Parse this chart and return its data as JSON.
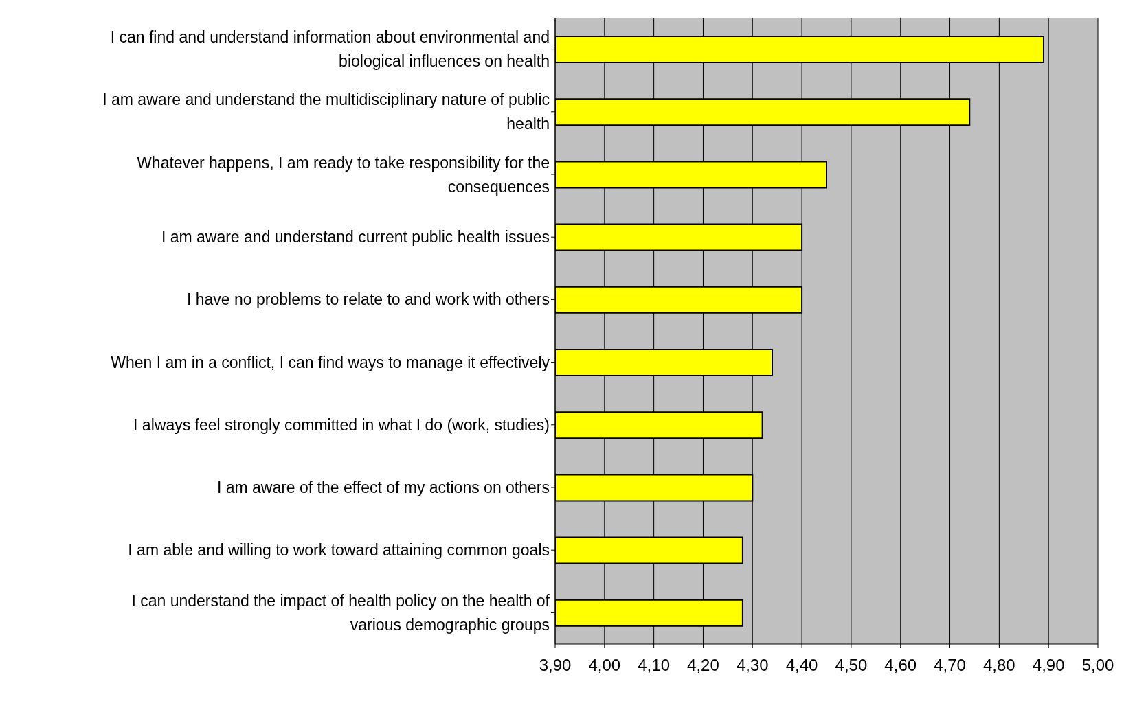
{
  "chart_data": {
    "type": "bar",
    "orientation": "horizontal",
    "categories": [
      "I can find and understand information about environmental and biological influences on health",
      "I am aware and understand the multidisciplinary nature of public health",
      "Whatever happens, I am ready to take responsibility for the consequences",
      "I am aware and understand current public health issues",
      "I have no problems to relate to and work with others",
      "When I am in a conflict, I can find ways to manage it effectively",
      "I always feel strongly committed in what I do (work, studies)",
      "I am aware of the effect of my actions on others",
      "I am able and willing to work toward attaining common goals",
      "I can understand the impact of health policy on the health of various demographic groups"
    ],
    "values": [
      4.89,
      4.74,
      4.45,
      4.4,
      4.4,
      4.34,
      4.32,
      4.3,
      4.28,
      4.28
    ],
    "color": "#ffff00",
    "xlim": [
      3.9,
      5.0
    ],
    "xticks": [
      {
        "value": 3.9,
        "label": "3,90"
      },
      {
        "value": 4.0,
        "label": "4,00"
      },
      {
        "value": 4.1,
        "label": "4,10"
      },
      {
        "value": 4.2,
        "label": "4,20"
      },
      {
        "value": 4.3,
        "label": "4,30"
      },
      {
        "value": 4.4,
        "label": "4,40"
      },
      {
        "value": 4.5,
        "label": "4,50"
      },
      {
        "value": 4.6,
        "label": "4,60"
      },
      {
        "value": 4.7,
        "label": "4,70"
      },
      {
        "value": 4.8,
        "label": "4,80"
      },
      {
        "value": 4.9,
        "label": "4,90"
      },
      {
        "value": 5.0,
        "label": "5,00"
      }
    ],
    "grid": "x"
  }
}
